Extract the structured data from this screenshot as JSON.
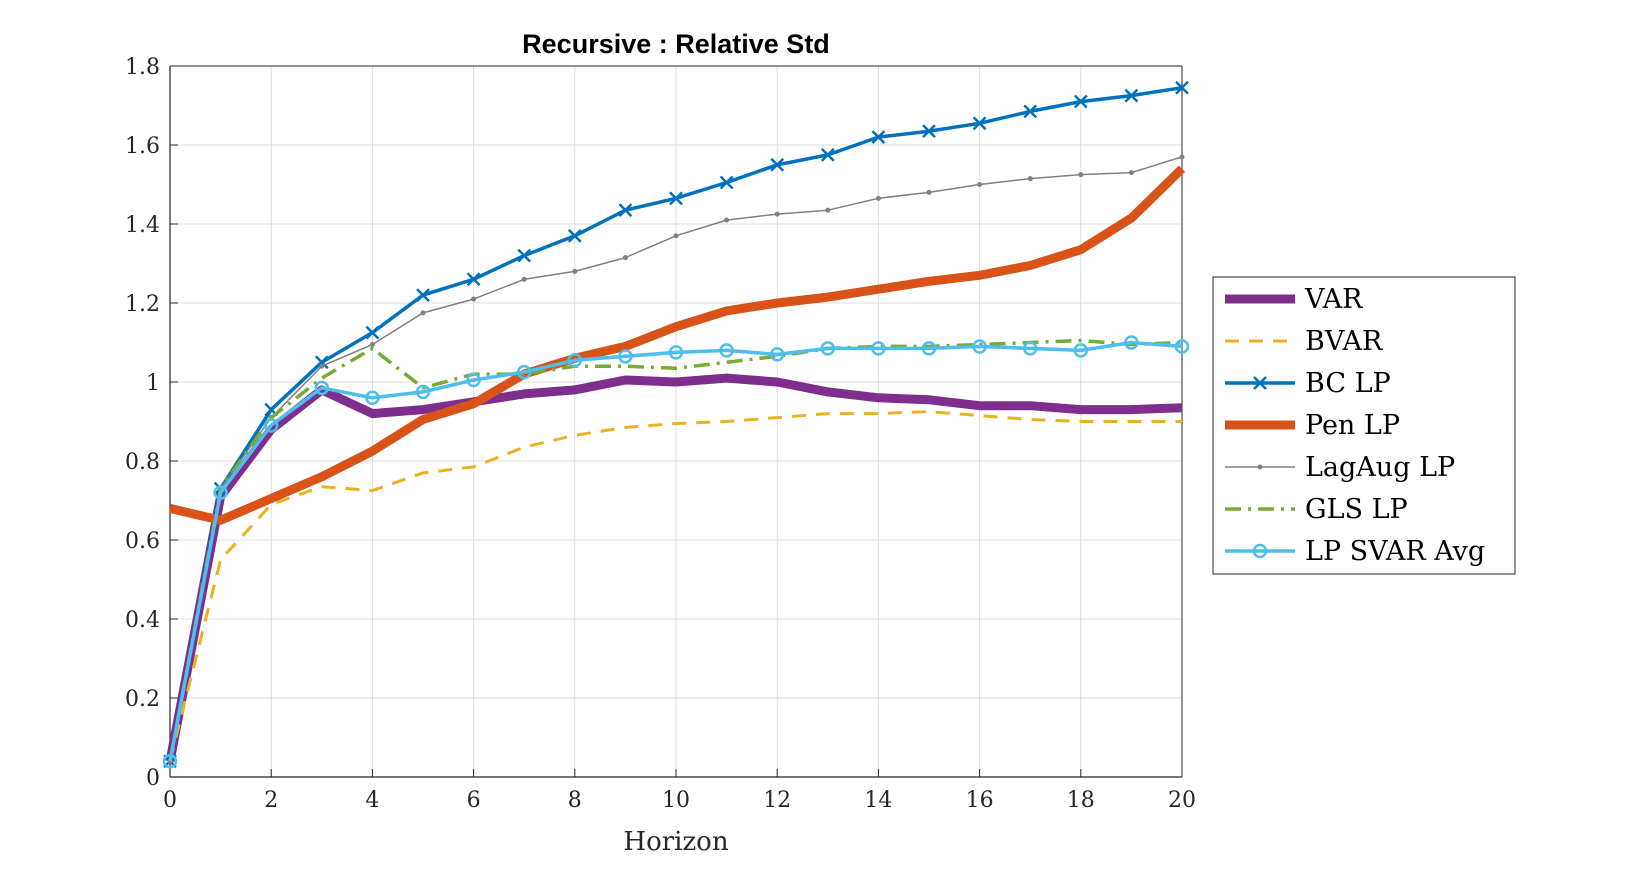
{
  "chart_data": {
    "type": "line",
    "title": "Recursive : Relative Std",
    "xlabel": "Horizon",
    "ylabel": "",
    "xlim": [
      0,
      20
    ],
    "ylim": [
      0,
      1.8
    ],
    "x_ticks": [
      "0",
      "2",
      "4",
      "6",
      "8",
      "10",
      "12",
      "14",
      "16",
      "18",
      "20"
    ],
    "y_ticks": [
      "0",
      "0.2",
      "0.4",
      "0.6",
      "0.8",
      "1",
      "1.2",
      "1.4",
      "1.6",
      "1.8"
    ],
    "grid": true,
    "legend_position": "outside-right",
    "x": [
      0,
      1,
      2,
      3,
      4,
      5,
      6,
      7,
      8,
      9,
      10,
      11,
      12,
      13,
      14,
      15,
      16,
      17,
      18,
      19,
      20
    ],
    "series": [
      {
        "name": "VAR",
        "color": "#7E2F8E",
        "style": "solid-thick",
        "marker": "none",
        "values": [
          0.04,
          0.71,
          0.88,
          0.98,
          0.92,
          0.93,
          0.95,
          0.97,
          0.98,
          1.005,
          1.0,
          1.01,
          1.0,
          0.975,
          0.96,
          0.955,
          0.94,
          0.94,
          0.93,
          0.93,
          0.935
        ]
      },
      {
        "name": "BVAR",
        "color": "#EDB120",
        "style": "dashed",
        "marker": "none",
        "values": [
          0.04,
          0.55,
          0.69,
          0.735,
          0.725,
          0.77,
          0.785,
          0.835,
          0.865,
          0.885,
          0.895,
          0.9,
          0.91,
          0.92,
          0.92,
          0.925,
          0.915,
          0.905,
          0.9,
          0.9,
          0.9
        ]
      },
      {
        "name": "BC LP",
        "color": "#0072BD",
        "style": "solid",
        "marker": "x",
        "values": [
          0.04,
          0.73,
          0.93,
          1.05,
          1.125,
          1.22,
          1.26,
          1.32,
          1.37,
          1.435,
          1.465,
          1.505,
          1.55,
          1.575,
          1.62,
          1.635,
          1.655,
          1.685,
          1.71,
          1.725,
          1.745
        ]
      },
      {
        "name": "Pen LP",
        "color": "#D95319",
        "style": "solid-thick",
        "marker": "none",
        "values": [
          0.68,
          0.65,
          0.705,
          0.76,
          0.825,
          0.905,
          0.945,
          1.02,
          1.06,
          1.09,
          1.14,
          1.18,
          1.2,
          1.215,
          1.235,
          1.255,
          1.27,
          1.295,
          1.335,
          1.415,
          1.54
        ]
      },
      {
        "name": "LagAug LP",
        "color": "#808080",
        "style": "solid-thin",
        "marker": "dot",
        "values": [
          0.04,
          0.73,
          0.91,
          1.04,
          1.095,
          1.175,
          1.21,
          1.26,
          1.28,
          1.315,
          1.37,
          1.41,
          1.425,
          1.435,
          1.465,
          1.48,
          1.5,
          1.515,
          1.525,
          1.53,
          1.57
        ]
      },
      {
        "name": "GLS LP",
        "color": "#77AC30",
        "style": "dashdot",
        "marker": "none",
        "values": [
          0.04,
          0.73,
          0.91,
          1.01,
          1.085,
          0.985,
          1.02,
          1.02,
          1.04,
          1.04,
          1.035,
          1.05,
          1.065,
          1.085,
          1.09,
          1.09,
          1.095,
          1.1,
          1.105,
          1.095,
          1.1
        ]
      },
      {
        "name": "LP SVAR Avg",
        "color": "#4DBEEE",
        "style": "solid",
        "marker": "circle",
        "values": [
          0.04,
          0.72,
          0.89,
          0.985,
          0.96,
          0.975,
          1.005,
          1.025,
          1.055,
          1.065,
          1.075,
          1.08,
          1.07,
          1.085,
          1.085,
          1.085,
          1.09,
          1.085,
          1.08,
          1.1,
          1.09
        ]
      }
    ]
  }
}
